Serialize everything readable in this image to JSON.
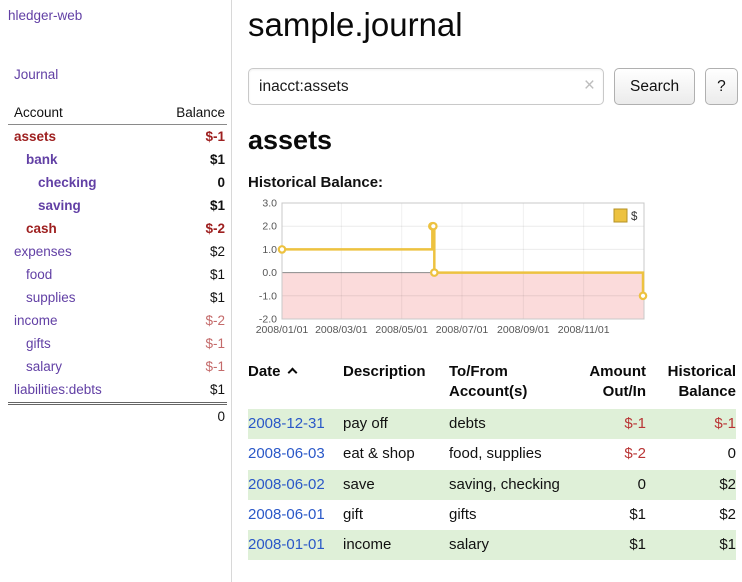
{
  "colors": {
    "accent-purple": "#6240a5",
    "link-blue": "#2a58c8",
    "negative-dark": "#9e2020",
    "negative": "#b93535",
    "negative-soft": "#c46a6a",
    "row-green": "#dff0d8",
    "chart-line": "#edc240",
    "chart-negative-fill": "#fbdbdb"
  },
  "sidebar": {
    "app_title": "hledger-web",
    "journal_label": "Journal",
    "col_account": "Account",
    "col_balance": "Balance",
    "accounts": [
      {
        "name": "assets",
        "balance": "$-1",
        "indent": 0,
        "negative": true
      },
      {
        "name": "bank",
        "balance": "$1",
        "indent": 1,
        "negative": false
      },
      {
        "name": "checking",
        "balance": "0",
        "indent": 2,
        "negative": false
      },
      {
        "name": "saving",
        "balance": "$1",
        "indent": 2,
        "negative": false
      },
      {
        "name": "cash",
        "balance": "$-2",
        "indent": 1,
        "negative": true
      },
      {
        "name": "expenses",
        "balance": "$2",
        "indent": 0,
        "negative": false
      },
      {
        "name": "food",
        "balance": "$1",
        "indent": 1,
        "negative": false
      },
      {
        "name": "supplies",
        "balance": "$1",
        "indent": 1,
        "negative": false
      },
      {
        "name": "income",
        "balance": "$-2",
        "indent": 0,
        "negative": true
      },
      {
        "name": "gifts",
        "balance": "$-1",
        "indent": 1,
        "negative": true
      },
      {
        "name": "salary",
        "balance": "$-1",
        "indent": 1,
        "negative": true
      },
      {
        "name": "liabilities:debts",
        "balance": "$1",
        "indent": 0,
        "negative": false
      }
    ],
    "total": "0"
  },
  "header": {
    "title": "sample.journal"
  },
  "search": {
    "value": "inacct:assets",
    "clear_icon": "×",
    "button_label": "Search",
    "help_label": "?"
  },
  "register": {
    "account_heading": "assets",
    "chart_label": "Historical Balance:",
    "headers": {
      "date": "Date",
      "description": "Description",
      "tofrom_line1": "To/From",
      "tofrom_line2": "Account(s)",
      "amount_line1": "Amount",
      "amount_line2": "Out/In",
      "balance_line1": "Historical",
      "balance_line2": "Balance"
    },
    "rows": [
      {
        "date": "2008-12-31",
        "description": "pay off",
        "accounts": "debts",
        "amount": "$-1",
        "balance": "$-1"
      },
      {
        "date": "2008-06-03",
        "description": "eat & shop",
        "accounts": "food, supplies",
        "amount": "$-2",
        "balance": "0"
      },
      {
        "date": "2008-06-02",
        "description": "save",
        "accounts": "saving, checking",
        "amount": "0",
        "balance": "$2"
      },
      {
        "date": "2008-06-01",
        "description": "gift",
        "accounts": "gifts",
        "amount": "$1",
        "balance": "$2"
      },
      {
        "date": "2008-01-01",
        "description": "income",
        "accounts": "salary",
        "amount": "$1",
        "balance": "$1"
      }
    ]
  },
  "chart_data": {
    "type": "line",
    "title": "Historical Balance:",
    "step": "after",
    "series": [
      {
        "name": "$",
        "points": [
          {
            "x": "2008-01-01",
            "y": 1
          },
          {
            "x": "2008-06-01",
            "y": 2
          },
          {
            "x": "2008-06-02",
            "y": 2
          },
          {
            "x": "2008-06-03",
            "y": 0
          },
          {
            "x": "2008-12-31",
            "y": -1
          }
        ]
      }
    ],
    "x_domain": [
      "2008-01-01",
      "2009-01-01"
    ],
    "x_ticks": [
      "2008/01/01",
      "2008/03/01",
      "2008/05/01",
      "2008/07/01",
      "2008/09/01",
      "2008/11/01"
    ],
    "y_ticks": [
      3.0,
      2.0,
      1.0,
      0.0,
      -1.0,
      -2.0
    ],
    "ylim": [
      -2,
      3
    ],
    "grid": true,
    "legend_position": "top-right",
    "legend": [
      {
        "label": "$",
        "color": "#edc240"
      }
    ],
    "line_color": "#edc240",
    "negative_region_color": "#fbdbdb"
  }
}
